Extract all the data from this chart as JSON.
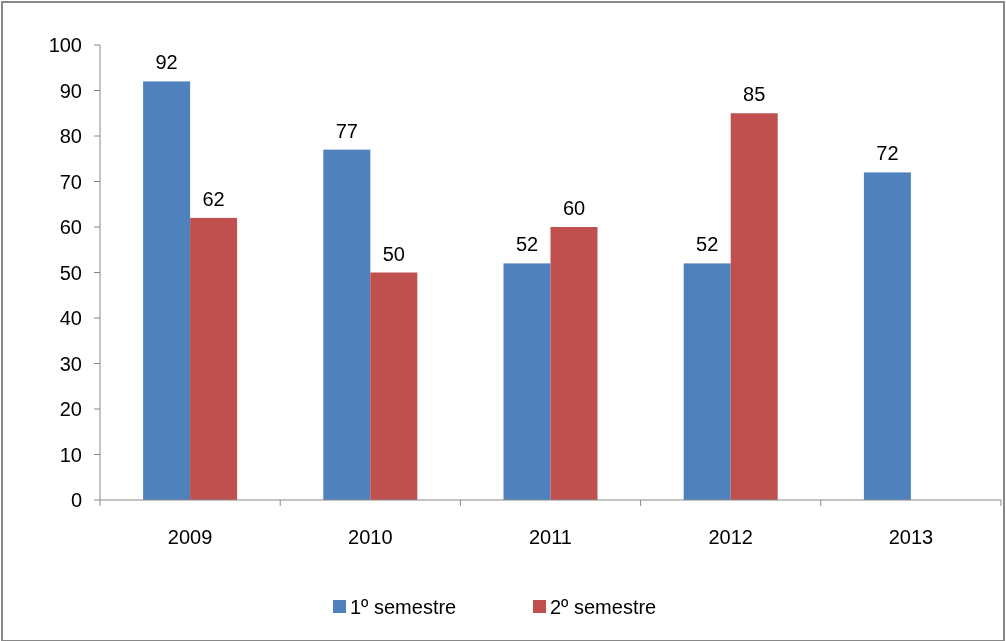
{
  "chart_data": {
    "type": "bar",
    "categories": [
      "2009",
      "2010",
      "2011",
      "2012",
      "2013"
    ],
    "series": [
      {
        "name": "1º semestre",
        "color": "#4f81bd",
        "values": [
          92,
          77,
          52,
          52,
          72
        ]
      },
      {
        "name": "2º semestre",
        "color": "#c0504d",
        "values": [
          62,
          50,
          60,
          85,
          null
        ]
      }
    ],
    "ylim": [
      0,
      100
    ],
    "yticks": [
      0,
      10,
      20,
      30,
      40,
      50,
      60,
      70,
      80,
      90,
      100
    ],
    "grid": false,
    "legend": "bottom",
    "data_labels": true
  }
}
